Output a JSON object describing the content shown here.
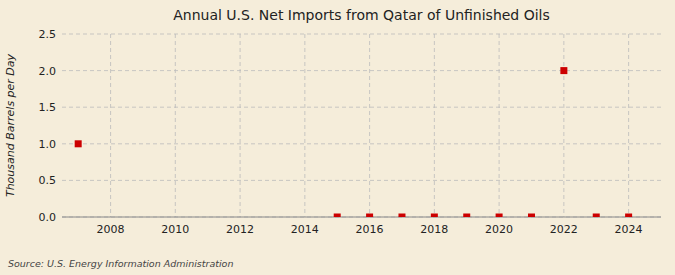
{
  "chart_data": {
    "type": "scatter",
    "title": "Annual U.S. Net Imports from Qatar of Unfinished Oils",
    "ylabel": "Thousand Barrels per Day",
    "annotations": [
      "Source: U.S. Energy Information Administration"
    ],
    "x": [
      2007,
      2015,
      2016,
      2017,
      2018,
      2019,
      2020,
      2021,
      2022,
      2023,
      2024
    ],
    "values": [
      1.0,
      0.0,
      0.0,
      0.0,
      0.0,
      0.0,
      0.0,
      0.0,
      2.0,
      0.0,
      0.0
    ],
    "color": "#cc0000",
    "marker": "square",
    "xlim": [
      2006.5,
      2025
    ],
    "xticks": [
      2008,
      2010,
      2012,
      2014,
      2016,
      2018,
      2020,
      2022,
      2024
    ],
    "ylim": [
      0,
      2.5
    ],
    "yticks": [
      {
        "value": 0,
        "label": "0.0"
      },
      0.5,
      {
        "value": 1,
        "label": "1.0"
      },
      1.5,
      {
        "value": 2,
        "label": "2.0"
      },
      2.5
    ],
    "grid": true
  }
}
